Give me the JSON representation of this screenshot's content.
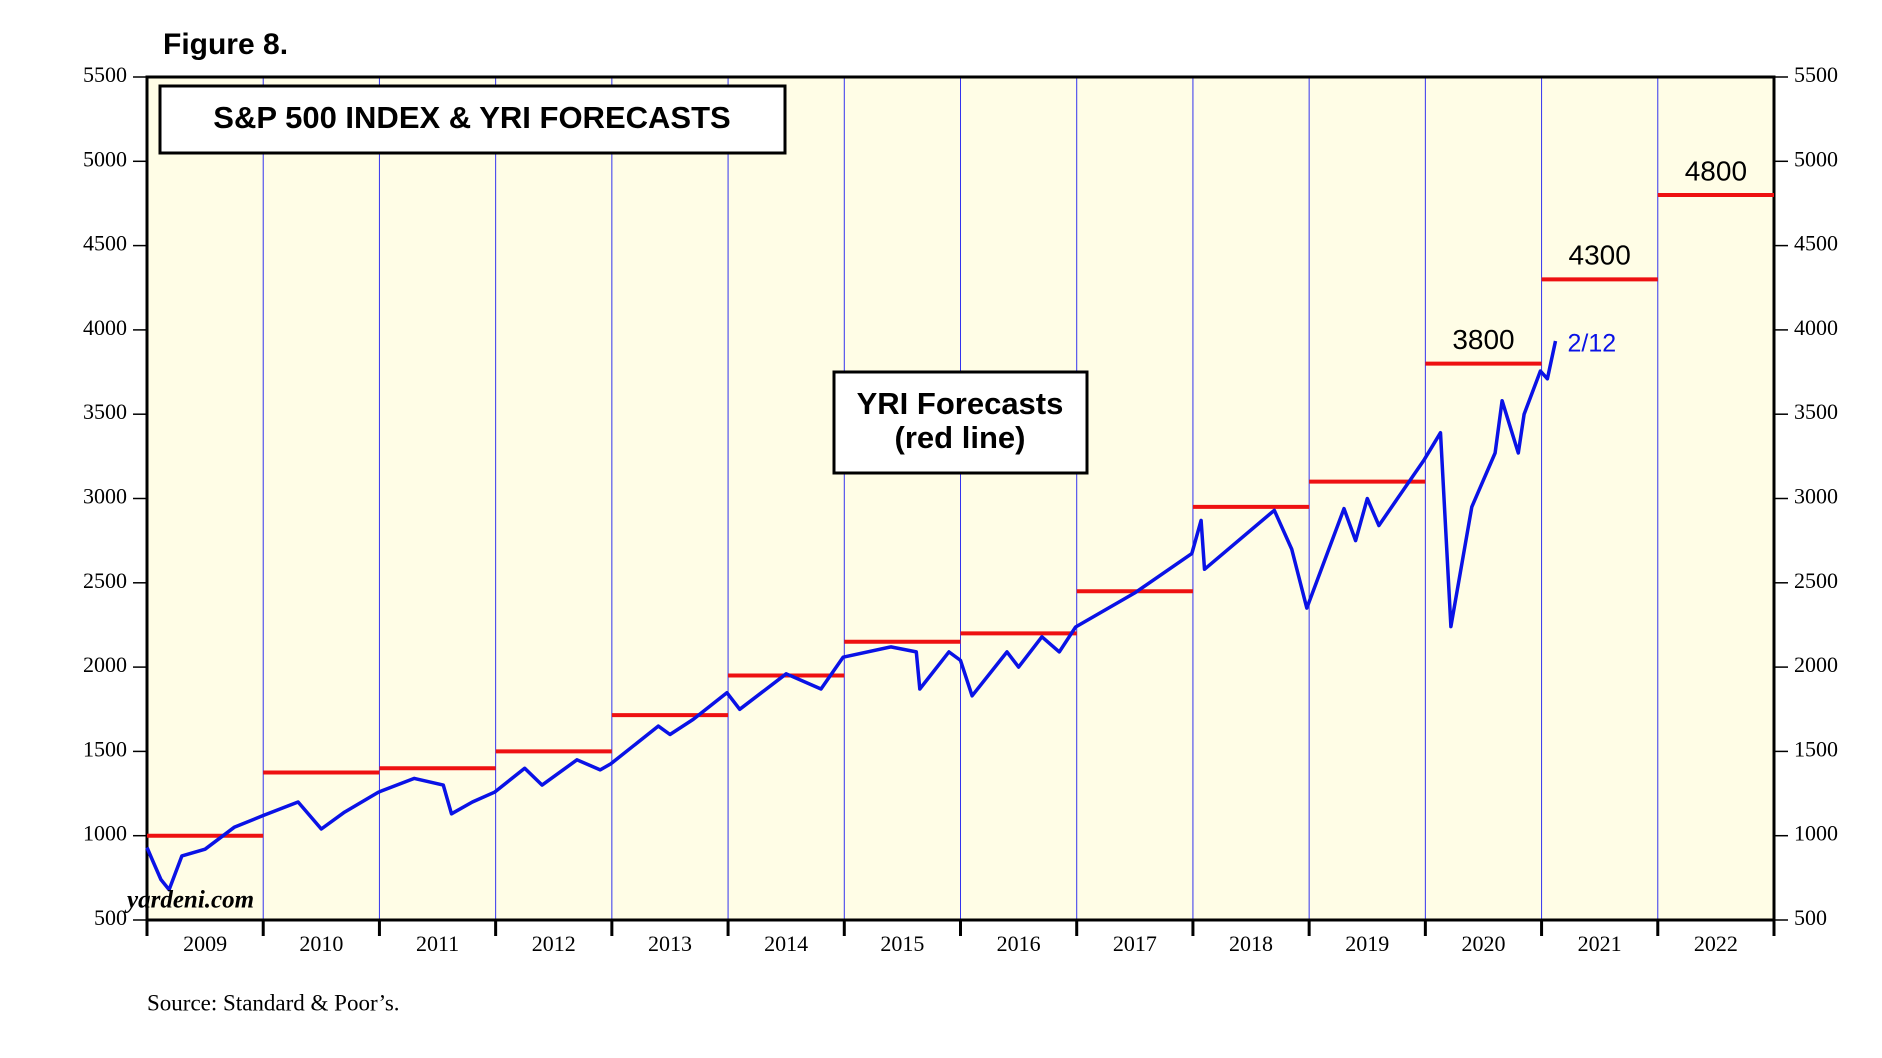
{
  "chart_data": {
    "type": "line",
    "figure_label": "Figure 8.",
    "title": "S&P 500 INDEX & YRI FORECASTS",
    "annotation_box": [
      "YRI Forecasts",
      "(red line)"
    ],
    "end_label": "2/12",
    "watermark": "yardeni.com",
    "source": "Source: Standard & Poor’s.",
    "categories": [
      "2009",
      "2010",
      "2011",
      "2012",
      "2013",
      "2014",
      "2015",
      "2016",
      "2017",
      "2018",
      "2019",
      "2020",
      "2021",
      "2022"
    ],
    "xlim": [
      2009,
      2023
    ],
    "ylim": [
      500,
      5500
    ],
    "yticks": [
      500,
      1000,
      1500,
      2000,
      2500,
      3000,
      3500,
      4000,
      4500,
      5000,
      5500
    ],
    "y2lim": [
      500,
      5500
    ],
    "y2ticks": [
      500,
      1000,
      1500,
      2000,
      2500,
      3000,
      3500,
      4000,
      4500,
      5000,
      5500
    ],
    "color": "#0a12e6",
    "x": [
      2009.0,
      2009.05,
      2009.12,
      2009.19,
      2009.3,
      2009.5,
      2009.75,
      2010.0,
      2010.3,
      2010.5,
      2010.7,
      2010.99,
      2011.3,
      2011.55,
      2011.62,
      2011.8,
      2011.99,
      2012.25,
      2012.4,
      2012.7,
      2012.9,
      2012.99,
      2013.4,
      2013.5,
      2013.7,
      2013.99,
      2014.1,
      2014.5,
      2014.8,
      2014.99,
      2015.4,
      2015.62,
      2015.65,
      2015.9,
      2016.0,
      2016.1,
      2016.4,
      2016.5,
      2016.7,
      2016.85,
      2016.99,
      2017.5,
      2017.99,
      2018.07,
      2018.1,
      2018.7,
      2018.85,
      2018.98,
      2019.3,
      2019.4,
      2019.5,
      2019.6,
      2019.99,
      2020.13,
      2020.22,
      2020.4,
      2020.6,
      2020.66,
      2020.8,
      2020.85,
      2020.99,
      2021.05,
      2021.12
    ],
    "values": [
      930,
      850,
      740,
      680,
      880,
      920,
      1050,
      1120,
      1200,
      1040,
      1140,
      1258,
      1340,
      1300,
      1130,
      1200,
      1258,
      1400,
      1300,
      1450,
      1390,
      1426,
      1650,
      1600,
      1690,
      1848,
      1750,
      1960,
      1870,
      2059,
      2120,
      2090,
      1870,
      2090,
      2040,
      1830,
      2090,
      2000,
      2180,
      2090,
      2238,
      2440,
      2673,
      2870,
      2580,
      2930,
      2700,
      2350,
      2940,
      2750,
      3000,
      2840,
      3230,
      3390,
      2240,
      2950,
      3270,
      3580,
      3270,
      3500,
      3756,
      3710,
      3934
    ],
    "forecasts": {
      "color": "#ee1111",
      "values": [
        1000,
        1375,
        1400,
        1500,
        1715,
        1950,
        2150,
        2200,
        2450,
        2950,
        3100,
        3800,
        4300,
        4800
      ],
      "value_labels": [
        null,
        null,
        null,
        null,
        null,
        null,
        null,
        null,
        null,
        null,
        null,
        "3800",
        "4300",
        "4800"
      ]
    }
  }
}
